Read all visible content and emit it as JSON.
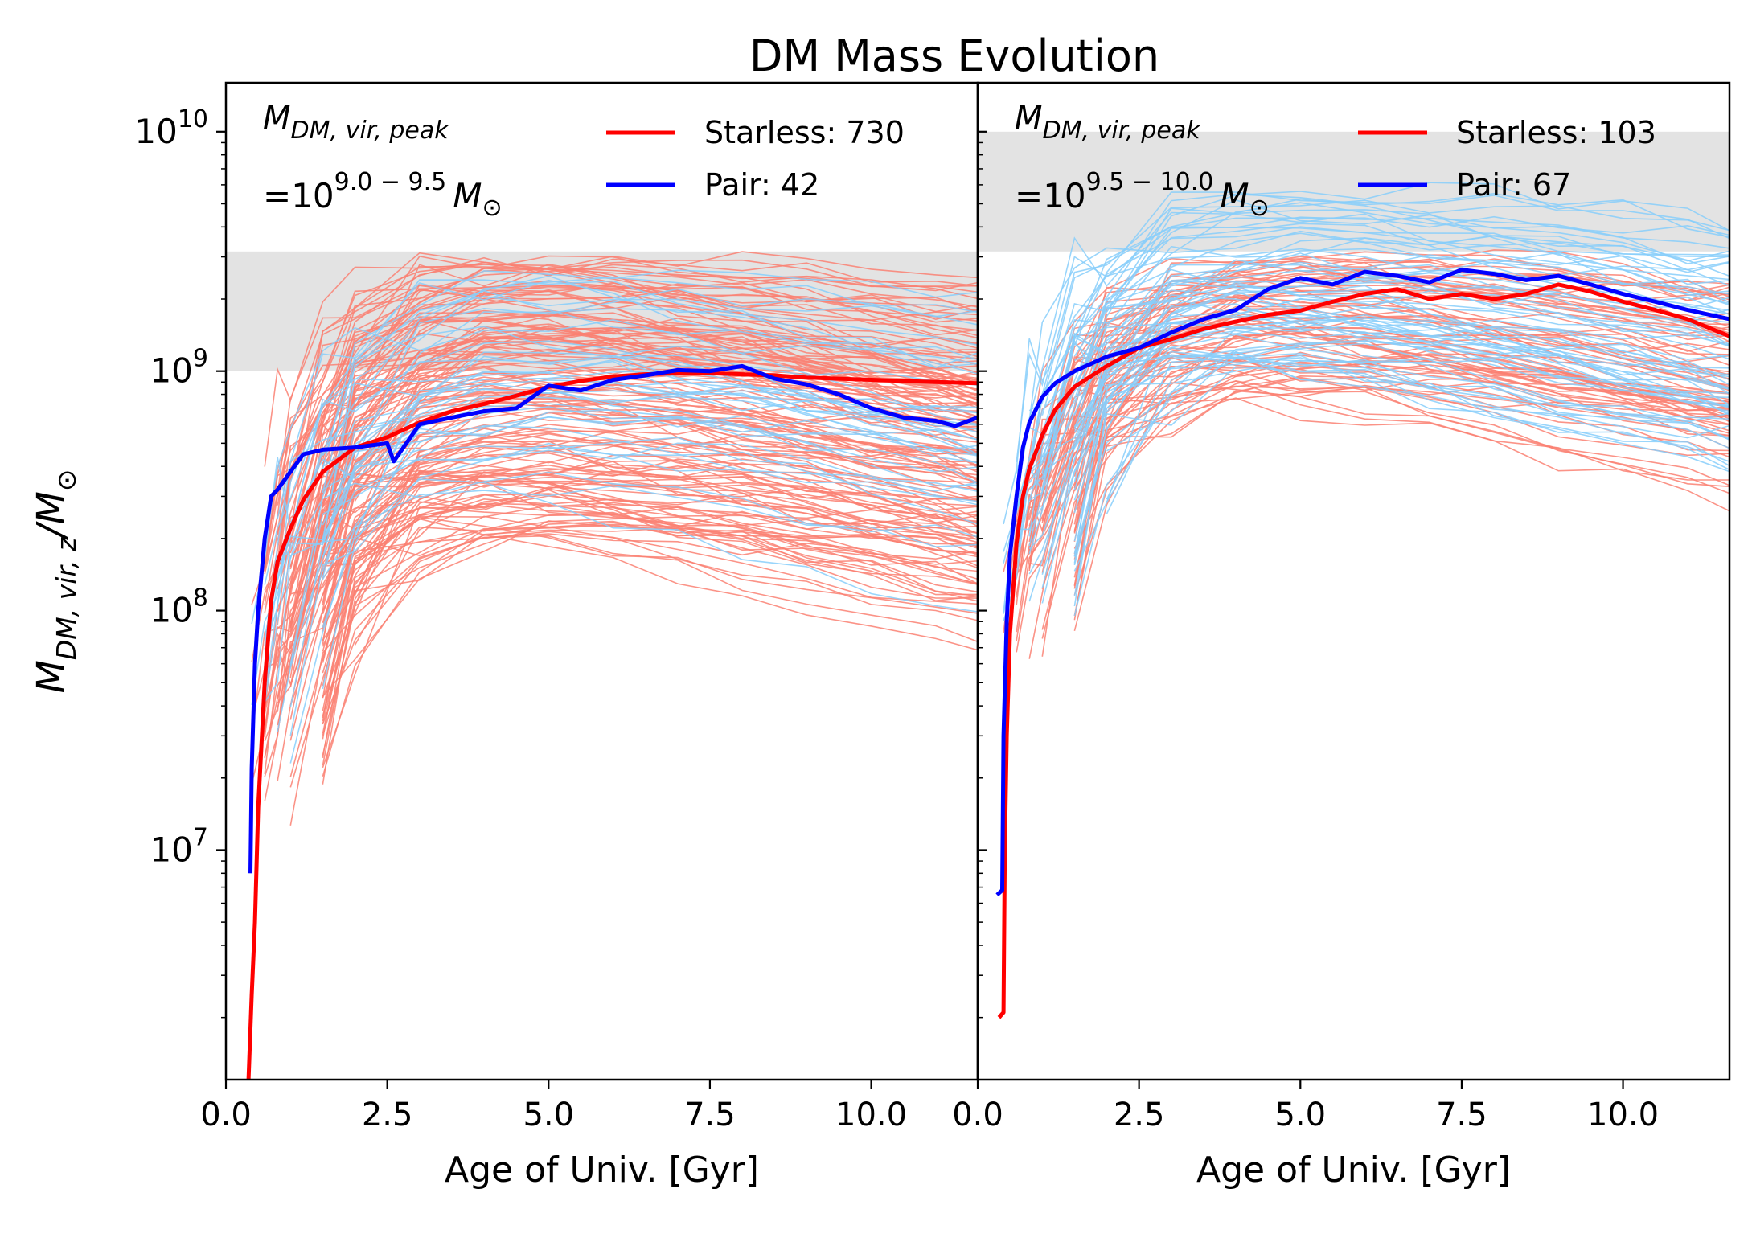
{
  "title": "DM Mass Evolution",
  "chart_data": {
    "type": "line",
    "title": "DM Mass Evolution",
    "yscale": "log",
    "ylabel": "M_{DM,vir,z}/M_⊙",
    "ylim": [
      1100000,
      16000000000
    ],
    "yticks": [
      {
        "value": 10000000,
        "label": "10",
        "exp": "7"
      },
      {
        "value": 100000000,
        "label": "10",
        "exp": "8"
      },
      {
        "value": 1000000000,
        "label": "10",
        "exp": "9"
      },
      {
        "value": 10000000000,
        "label": "10",
        "exp": "10"
      }
    ],
    "panels": [
      {
        "xlabel": "Age of Univ. [Gyr]",
        "xlim": [
          0.0,
          11.65
        ],
        "xticks": [
          "0.0",
          "2.5",
          "5.0",
          "7.5",
          "10.0"
        ],
        "xtick_values": [
          0,
          2.5,
          5,
          7.5,
          10
        ],
        "annotation_line1": "M_{DM,vir,peak}",
        "annotation_line2_prefix": "=10",
        "annotation_exponent": "9.0 − 9.5",
        "annotation_suffix": "M_⊙",
        "mass_band": [
          1000000000,
          3160000000
        ],
        "legend": [
          {
            "label": "Starless: 730",
            "color": "#ff0000"
          },
          {
            "label": "Pair: 42",
            "color": "#0000ff"
          }
        ],
        "series": [
          {
            "name": "Starless: 730",
            "color": "#ff0000",
            "x": [
              0.35,
              0.4,
              0.45,
              0.5,
              0.6,
              0.7,
              0.8,
              1.0,
              1.2,
              1.5,
              2.0,
              2.5,
              3.0,
              3.5,
              4.0,
              4.5,
              5.0,
              5.5,
              6.0,
              6.5,
              7.0,
              7.5,
              8.0,
              8.5,
              9.0,
              9.5,
              10.0,
              10.5,
              11.0,
              11.65
            ],
            "y": [
              1100000,
              2500000,
              5000000,
              15000000,
              50000000,
              110000000,
              160000000,
              220000000,
              290000000,
              380000000,
              480000000,
              530000000,
              610000000,
              680000000,
              730000000,
              790000000,
              860000000,
              910000000,
              950000000,
              970000000,
              980000000,
              980000000,
              970000000,
              960000000,
              940000000,
              930000000,
              920000000,
              910000000,
              900000000,
              890000000
            ]
          },
          {
            "name": "Pair: 42",
            "color": "#0000ff",
            "x": [
              0.38,
              0.4,
              0.45,
              0.5,
              0.6,
              0.7,
              0.8,
              1.0,
              1.2,
              1.5,
              2.0,
              2.5,
              2.6,
              3.0,
              3.5,
              4.0,
              4.5,
              5.0,
              5.5,
              6.0,
              6.5,
              7.0,
              7.5,
              8.0,
              8.5,
              9.0,
              9.5,
              10.0,
              10.5,
              11.0,
              11.3,
              11.65
            ],
            "y": [
              8000000,
              22000000,
              60000000,
              100000000,
              200000000,
              300000000,
              320000000,
              380000000,
              450000000,
              470000000,
              480000000,
              500000000,
              420000000,
              600000000,
              640000000,
              680000000,
              700000000,
              870000000,
              830000000,
              920000000,
              960000000,
              1010000000,
              1000000000,
              1050000000,
              930000000,
              880000000,
              800000000,
              700000000,
              640000000,
              620000000,
              590000000,
              640000000
            ]
          }
        ]
      },
      {
        "xlabel": "Age of Univ. [Gyr]",
        "xlim": [
          0.0,
          11.65
        ],
        "xticks": [
          "0.0",
          "2.5",
          "5.0",
          "7.5",
          "10.0"
        ],
        "xtick_values": [
          0,
          2.5,
          5,
          7.5,
          10
        ],
        "annotation_line1": "M_{DM,vir,peak}",
        "annotation_line2_prefix": "=10",
        "annotation_exponent": "9.5 − 10.0",
        "annotation_suffix": "M_⊙",
        "mass_band": [
          3160000000,
          10000000000
        ],
        "legend": [
          {
            "label": "Starless: 103",
            "color": "#ff0000"
          },
          {
            "label": "Pair: 67",
            "color": "#0000ff"
          }
        ],
        "series": [
          {
            "name": "Starless: 103",
            "color": "#ff0000",
            "x": [
              0.33,
              0.4,
              0.42,
              0.45,
              0.5,
              0.6,
              0.7,
              0.8,
              1.0,
              1.2,
              1.5,
              2.0,
              2.5,
              3.0,
              3.5,
              4.0,
              4.5,
              5.0,
              5.5,
              6.0,
              6.5,
              7.0,
              7.5,
              8.0,
              8.5,
              9.0,
              9.5,
              10.0,
              10.5,
              11.0,
              11.65
            ],
            "y": [
              2000000,
              2100000,
              10000000,
              30000000,
              80000000,
              190000000,
              300000000,
              390000000,
              540000000,
              690000000,
              860000000,
              1050000000,
              1250000000,
              1360000000,
              1500000000,
              1610000000,
              1720000000,
              1790000000,
              1950000000,
              2100000000,
              2200000000,
              2000000000,
              2100000000,
              2000000000,
              2100000000,
              2300000000,
              2150000000,
              1950000000,
              1800000000,
              1650000000,
              1400000000
            ]
          },
          {
            "name": "Pair: 67",
            "color": "#0000ff",
            "x": [
              0.3,
              0.38,
              0.4,
              0.45,
              0.5,
              0.6,
              0.7,
              0.8,
              1.0,
              1.2,
              1.5,
              2.0,
              2.5,
              3.0,
              3.5,
              4.0,
              4.5,
              5.0,
              5.5,
              6.0,
              6.5,
              7.0,
              7.5,
              8.0,
              8.5,
              9.0,
              9.5,
              10.0,
              10.5,
              11.0,
              11.65
            ],
            "y": [
              6500000,
              6800000,
              30000000,
              90000000,
              170000000,
              300000000,
              480000000,
              610000000,
              780000000,
              890000000,
              1000000000,
              1150000000,
              1250000000,
              1450000000,
              1650000000,
              1800000000,
              2200000000,
              2450000000,
              2300000000,
              2600000000,
              2500000000,
              2350000000,
              2650000000,
              2550000000,
              2400000000,
              2500000000,
              2300000000,
              2100000000,
              1950000000,
              1800000000,
              1650000000
            ]
          }
        ]
      }
    ]
  }
}
